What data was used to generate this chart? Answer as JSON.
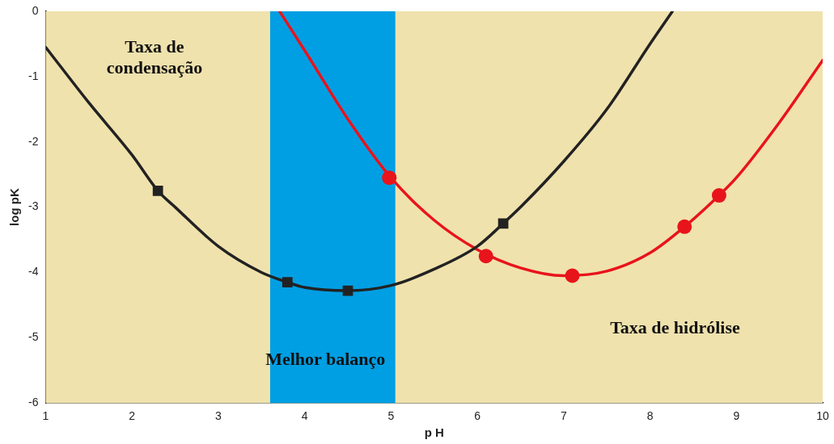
{
  "chart_data": {
    "type": "line",
    "xlabel": "p H",
    "ylabel": "log pK",
    "xlim": [
      1,
      10
    ],
    "ylim": [
      -6,
      0
    ],
    "xticks": [
      1,
      2,
      3,
      4,
      5,
      6,
      7,
      8,
      9,
      10
    ],
    "yticks": [
      0,
      -1,
      -2,
      -3,
      -4,
      -5,
      -6
    ],
    "grid": false,
    "legend": false,
    "series": [
      {
        "type": "line",
        "color": "#222222",
        "marker": "none",
        "x": [
          1,
          1.5,
          2,
          2.3,
          2.5,
          3,
          3.5,
          3.8,
          4,
          4.5,
          5,
          5.5,
          6,
          6.3,
          6.5,
          7,
          7.5,
          8,
          8.26
        ],
        "values": [
          -0.55,
          -1.4,
          -2.2,
          -2.75,
          -3.0,
          -3.6,
          -4.0,
          -4.15,
          -4.23,
          -4.28,
          -4.2,
          -3.95,
          -3.6,
          -3.25,
          -3.0,
          -2.3,
          -1.5,
          -0.5,
          0
        ]
      },
      {
        "type": "scatter",
        "color": "#222222",
        "marker": "square",
        "x": [
          2.3,
          3.8,
          4.5,
          6.3
        ],
        "values": [
          -2.75,
          -4.15,
          -4.28,
          -3.25
        ]
      },
      {
        "type": "line",
        "color": "#e8141c",
        "marker": "none",
        "x": [
          3.71,
          4,
          4.5,
          5,
          5.5,
          6,
          6.5,
          7,
          7.5,
          8,
          8.4,
          8.8,
          9,
          9.5,
          10
        ],
        "values": [
          0,
          -0.6,
          -1.65,
          -2.55,
          -3.2,
          -3.65,
          -3.93,
          -4.05,
          -3.98,
          -3.7,
          -3.3,
          -2.82,
          -2.55,
          -1.7,
          -0.75
        ]
      },
      {
        "type": "scatter",
        "color": "#e8141c",
        "marker": "circle",
        "x": [
          4.98,
          6.1,
          7.1,
          8.4,
          8.8
        ],
        "values": [
          -2.55,
          -3.75,
          -4.05,
          -3.3,
          -2.82
        ]
      }
    ],
    "bands": [
      {
        "axis": "x",
        "from": 3.6,
        "to": 5.05,
        "color": "#009fe3"
      }
    ],
    "annotations": [
      "Taxa de condensação",
      "Melhor balanço",
      "Taxa de hidrólise"
    ]
  }
}
